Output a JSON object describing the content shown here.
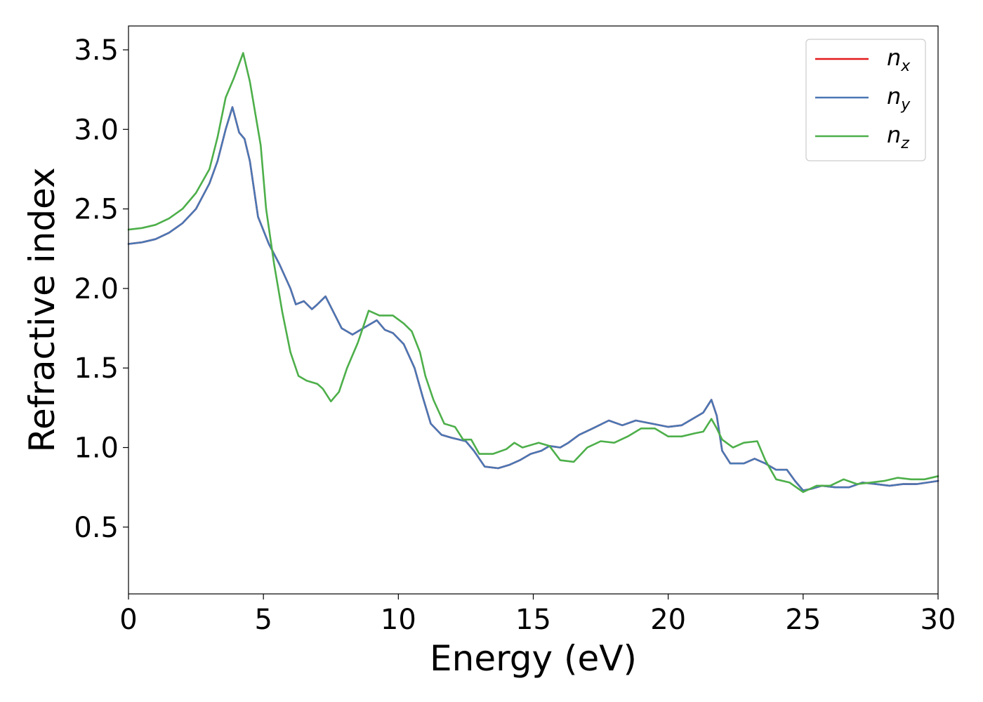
{
  "chart_data": {
    "type": "line",
    "title": "",
    "xlabel": "Energy (eV)",
    "ylabel": "Refractive index",
    "xlim": [
      0,
      30
    ],
    "ylim": [
      0.08,
      3.65
    ],
    "xticks": [
      0,
      5,
      10,
      15,
      20,
      25,
      30
    ],
    "xtick_labels": [
      "0",
      "5",
      "10",
      "15",
      "20",
      "25",
      "30"
    ],
    "yticks": [
      0.5,
      1.0,
      1.5,
      2.0,
      2.5,
      3.0,
      3.5
    ],
    "ytick_labels": [
      "0.5",
      "1.0",
      "1.5",
      "2.0",
      "2.5",
      "3.0",
      "3.5"
    ],
    "grid": false,
    "legend_position": "top-right",
    "series": [
      {
        "name": "n_x",
        "label_base": "n",
        "label_sub": "x",
        "color": "#e41a1c",
        "points": [
          [
            0,
            2.28
          ],
          [
            0.5,
            2.29
          ],
          [
            1,
            2.31
          ],
          [
            1.5,
            2.35
          ],
          [
            2,
            2.41
          ],
          [
            2.5,
            2.5
          ],
          [
            3,
            2.66
          ],
          [
            3.3,
            2.8
          ],
          [
            3.6,
            3.0
          ],
          [
            3.85,
            3.14
          ],
          [
            4.1,
            2.98
          ],
          [
            4.3,
            2.94
          ],
          [
            4.5,
            2.8
          ],
          [
            4.8,
            2.45
          ],
          [
            5.2,
            2.28
          ],
          [
            5.6,
            2.15
          ],
          [
            6.0,
            2.0
          ],
          [
            6.2,
            1.9
          ],
          [
            6.5,
            1.92
          ],
          [
            6.8,
            1.87
          ],
          [
            7.0,
            1.9
          ],
          [
            7.3,
            1.95
          ],
          [
            7.6,
            1.85
          ],
          [
            7.9,
            1.75
          ],
          [
            8.3,
            1.71
          ],
          [
            8.8,
            1.76
          ],
          [
            9.2,
            1.8
          ],
          [
            9.5,
            1.74
          ],
          [
            9.8,
            1.72
          ],
          [
            10.2,
            1.65
          ],
          [
            10.6,
            1.5
          ],
          [
            10.9,
            1.32
          ],
          [
            11.2,
            1.15
          ],
          [
            11.6,
            1.08
          ],
          [
            12.0,
            1.06
          ],
          [
            12.5,
            1.04
          ],
          [
            12.8,
            0.98
          ],
          [
            13.2,
            0.88
          ],
          [
            13.7,
            0.87
          ],
          [
            14.1,
            0.89
          ],
          [
            14.5,
            0.92
          ],
          [
            14.9,
            0.96
          ],
          [
            15.3,
            0.98
          ],
          [
            15.6,
            1.01
          ],
          [
            16.0,
            1.0
          ],
          [
            16.3,
            1.03
          ],
          [
            16.7,
            1.08
          ],
          [
            17.2,
            1.12
          ],
          [
            17.8,
            1.17
          ],
          [
            18.3,
            1.14
          ],
          [
            18.8,
            1.17
          ],
          [
            19.4,
            1.15
          ],
          [
            20.0,
            1.13
          ],
          [
            20.5,
            1.14
          ],
          [
            21.0,
            1.19
          ],
          [
            21.3,
            1.22
          ],
          [
            21.6,
            1.3
          ],
          [
            21.8,
            1.2
          ],
          [
            22.0,
            0.98
          ],
          [
            22.3,
            0.9
          ],
          [
            22.8,
            0.9
          ],
          [
            23.2,
            0.93
          ],
          [
            23.6,
            0.9
          ],
          [
            24.0,
            0.86
          ],
          [
            24.4,
            0.86
          ],
          [
            24.7,
            0.79
          ],
          [
            25.0,
            0.73
          ],
          [
            25.3,
            0.74
          ],
          [
            25.7,
            0.76
          ],
          [
            26.2,
            0.75
          ],
          [
            26.7,
            0.75
          ],
          [
            27.2,
            0.78
          ],
          [
            27.7,
            0.77
          ],
          [
            28.2,
            0.76
          ],
          [
            28.7,
            0.77
          ],
          [
            29.2,
            0.77
          ],
          [
            29.6,
            0.78
          ],
          [
            30.0,
            0.79
          ]
        ]
      },
      {
        "name": "n_y",
        "label_base": "n",
        "label_sub": "y",
        "color": "#4a77b4",
        "points": [
          [
            0,
            2.28
          ],
          [
            0.5,
            2.29
          ],
          [
            1,
            2.31
          ],
          [
            1.5,
            2.35
          ],
          [
            2,
            2.41
          ],
          [
            2.5,
            2.5
          ],
          [
            3,
            2.66
          ],
          [
            3.3,
            2.8
          ],
          [
            3.6,
            3.0
          ],
          [
            3.85,
            3.14
          ],
          [
            4.1,
            2.98
          ],
          [
            4.3,
            2.94
          ],
          [
            4.5,
            2.8
          ],
          [
            4.8,
            2.45
          ],
          [
            5.2,
            2.28
          ],
          [
            5.6,
            2.15
          ],
          [
            6.0,
            2.0
          ],
          [
            6.2,
            1.9
          ],
          [
            6.5,
            1.92
          ],
          [
            6.8,
            1.87
          ],
          [
            7.0,
            1.9
          ],
          [
            7.3,
            1.95
          ],
          [
            7.6,
            1.85
          ],
          [
            7.9,
            1.75
          ],
          [
            8.3,
            1.71
          ],
          [
            8.8,
            1.76
          ],
          [
            9.2,
            1.8
          ],
          [
            9.5,
            1.74
          ],
          [
            9.8,
            1.72
          ],
          [
            10.2,
            1.65
          ],
          [
            10.6,
            1.5
          ],
          [
            10.9,
            1.32
          ],
          [
            11.2,
            1.15
          ],
          [
            11.6,
            1.08
          ],
          [
            12.0,
            1.06
          ],
          [
            12.5,
            1.04
          ],
          [
            12.8,
            0.98
          ],
          [
            13.2,
            0.88
          ],
          [
            13.7,
            0.87
          ],
          [
            14.1,
            0.89
          ],
          [
            14.5,
            0.92
          ],
          [
            14.9,
            0.96
          ],
          [
            15.3,
            0.98
          ],
          [
            15.6,
            1.01
          ],
          [
            16.0,
            1.0
          ],
          [
            16.3,
            1.03
          ],
          [
            16.7,
            1.08
          ],
          [
            17.2,
            1.12
          ],
          [
            17.8,
            1.17
          ],
          [
            18.3,
            1.14
          ],
          [
            18.8,
            1.17
          ],
          [
            19.4,
            1.15
          ],
          [
            20.0,
            1.13
          ],
          [
            20.5,
            1.14
          ],
          [
            21.0,
            1.19
          ],
          [
            21.3,
            1.22
          ],
          [
            21.6,
            1.3
          ],
          [
            21.8,
            1.2
          ],
          [
            22.0,
            0.98
          ],
          [
            22.3,
            0.9
          ],
          [
            22.8,
            0.9
          ],
          [
            23.2,
            0.93
          ],
          [
            23.6,
            0.9
          ],
          [
            24.0,
            0.86
          ],
          [
            24.4,
            0.86
          ],
          [
            24.7,
            0.79
          ],
          [
            25.0,
            0.73
          ],
          [
            25.3,
            0.74
          ],
          [
            25.7,
            0.76
          ],
          [
            26.2,
            0.75
          ],
          [
            26.7,
            0.75
          ],
          [
            27.2,
            0.78
          ],
          [
            27.7,
            0.77
          ],
          [
            28.2,
            0.76
          ],
          [
            28.7,
            0.77
          ],
          [
            29.2,
            0.77
          ],
          [
            29.6,
            0.78
          ],
          [
            30.0,
            0.79
          ]
        ]
      },
      {
        "name": "n_z",
        "label_base": "n",
        "label_sub": "z",
        "color": "#4daf4a",
        "points": [
          [
            0,
            2.37
          ],
          [
            0.5,
            2.38
          ],
          [
            1,
            2.4
          ],
          [
            1.5,
            2.44
          ],
          [
            2,
            2.5
          ],
          [
            2.5,
            2.6
          ],
          [
            3,
            2.75
          ],
          [
            3.3,
            2.95
          ],
          [
            3.6,
            3.2
          ],
          [
            3.9,
            3.32
          ],
          [
            4.25,
            3.48
          ],
          [
            4.5,
            3.3
          ],
          [
            4.7,
            3.1
          ],
          [
            4.9,
            2.9
          ],
          [
            5.1,
            2.5
          ],
          [
            5.4,
            2.15
          ],
          [
            5.7,
            1.85
          ],
          [
            6.0,
            1.6
          ],
          [
            6.3,
            1.45
          ],
          [
            6.6,
            1.42
          ],
          [
            7.0,
            1.4
          ],
          [
            7.2,
            1.37
          ],
          [
            7.5,
            1.29
          ],
          [
            7.8,
            1.35
          ],
          [
            8.1,
            1.5
          ],
          [
            8.5,
            1.66
          ],
          [
            8.9,
            1.86
          ],
          [
            9.3,
            1.83
          ],
          [
            9.8,
            1.83
          ],
          [
            10.2,
            1.78
          ],
          [
            10.5,
            1.73
          ],
          [
            10.8,
            1.6
          ],
          [
            11.0,
            1.45
          ],
          [
            11.3,
            1.3
          ],
          [
            11.7,
            1.15
          ],
          [
            12.1,
            1.13
          ],
          [
            12.4,
            1.05
          ],
          [
            12.7,
            1.05
          ],
          [
            13.0,
            0.96
          ],
          [
            13.5,
            0.96
          ],
          [
            14.0,
            0.99
          ],
          [
            14.3,
            1.03
          ],
          [
            14.6,
            1.0
          ],
          [
            15.2,
            1.03
          ],
          [
            15.6,
            1.01
          ],
          [
            16.0,
            0.92
          ],
          [
            16.5,
            0.91
          ],
          [
            17.0,
            1.0
          ],
          [
            17.5,
            1.04
          ],
          [
            18.0,
            1.03
          ],
          [
            18.5,
            1.07
          ],
          [
            19.0,
            1.12
          ],
          [
            19.5,
            1.12
          ],
          [
            20.0,
            1.07
          ],
          [
            20.5,
            1.07
          ],
          [
            21.0,
            1.09
          ],
          [
            21.3,
            1.1
          ],
          [
            21.6,
            1.18
          ],
          [
            21.8,
            1.12
          ],
          [
            22.0,
            1.05
          ],
          [
            22.4,
            1.0
          ],
          [
            22.8,
            1.03
          ],
          [
            23.3,
            1.04
          ],
          [
            23.6,
            0.92
          ],
          [
            24.0,
            0.8
          ],
          [
            24.5,
            0.78
          ],
          [
            25.0,
            0.72
          ],
          [
            25.5,
            0.76
          ],
          [
            26.0,
            0.76
          ],
          [
            26.5,
            0.8
          ],
          [
            27.0,
            0.77
          ],
          [
            27.5,
            0.78
          ],
          [
            28.0,
            0.79
          ],
          [
            28.5,
            0.81
          ],
          [
            29.0,
            0.8
          ],
          [
            29.5,
            0.8
          ],
          [
            30.0,
            0.82
          ]
        ]
      }
    ]
  }
}
